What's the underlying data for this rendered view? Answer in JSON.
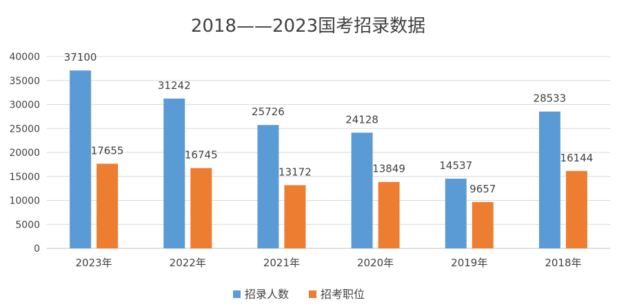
{
  "chart_data": {
    "type": "bar",
    "title": "2018——2023国考招录数据",
    "categories": [
      "2023年",
      "2022年",
      "2021年",
      "2020年",
      "2019年",
      "2018年"
    ],
    "series": [
      {
        "name": "招录人数",
        "values": [
          37100,
          31242,
          25726,
          24128,
          14537,
          28533
        ],
        "color": "#5B9BD5"
      },
      {
        "name": "招考职位",
        "values": [
          17655,
          16745,
          13172,
          13849,
          9657,
          16144
        ],
        "color": "#ED7D31"
      }
    ],
    "ylim": [
      0,
      40000
    ],
    "yticks": [
      0,
      5000,
      10000,
      15000,
      20000,
      25000,
      30000,
      35000,
      40000
    ],
    "grid": true,
    "legend": "bottom",
    "xlabel": "",
    "ylabel": ""
  }
}
